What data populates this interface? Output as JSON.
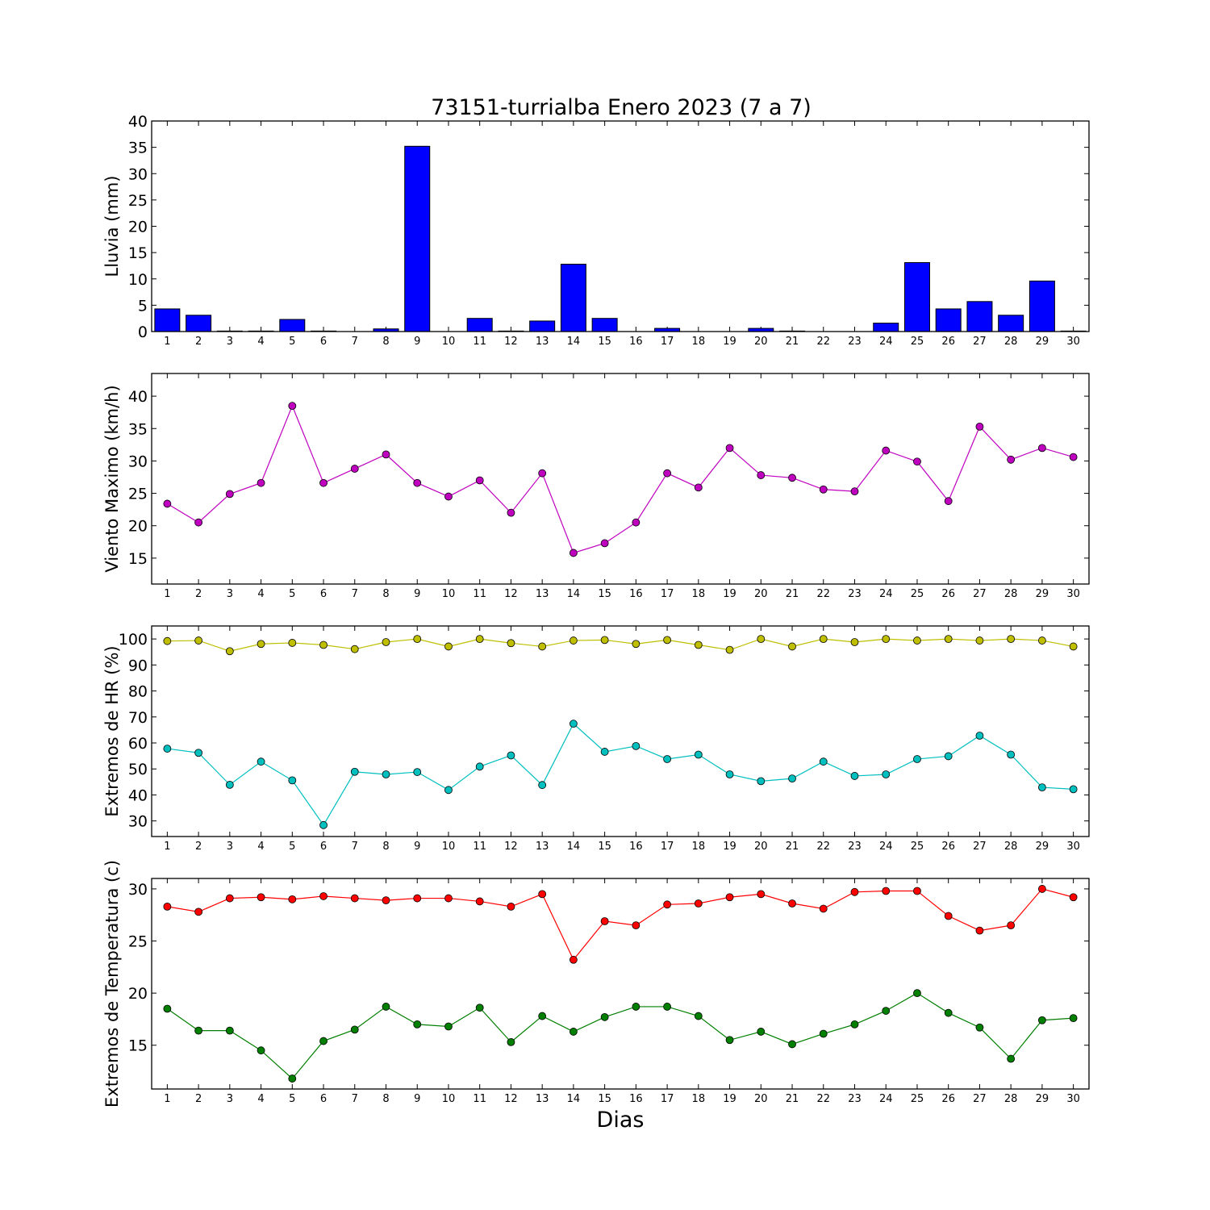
{
  "figure": {
    "title": "73151-turrialba Enero 2023  (7 a 7)",
    "xlabel": "Dias"
  },
  "chart_data": [
    {
      "type": "bar",
      "ylabel": "Lluvia (mm)",
      "ylim": [
        0,
        40
      ],
      "yticks": [
        0,
        5,
        10,
        15,
        20,
        25,
        30,
        35,
        40
      ],
      "color": "#0000ff",
      "categories": [
        1,
        2,
        3,
        4,
        5,
        6,
        7,
        8,
        9,
        10,
        11,
        12,
        13,
        14,
        15,
        16,
        17,
        18,
        19,
        20,
        21,
        22,
        23,
        24,
        25,
        26,
        27,
        28,
        29,
        30
      ],
      "values": [
        4.3,
        3.1,
        0.1,
        0.1,
        2.3,
        0.1,
        0,
        0.5,
        35.2,
        0,
        2.5,
        0.1,
        2.0,
        12.8,
        2.5,
        0,
        0.6,
        0,
        0,
        0.6,
        0.1,
        0,
        0,
        1.6,
        13.1,
        4.3,
        5.7,
        3.1,
        9.6,
        0.1
      ]
    },
    {
      "type": "line",
      "ylabel": "Viento Maximo (km/h)",
      "ylim": [
        11,
        43.5
      ],
      "yticks": [
        15,
        20,
        25,
        30,
        35,
        40
      ],
      "x": [
        1,
        2,
        3,
        4,
        5,
        6,
        7,
        8,
        9,
        10,
        11,
        12,
        13,
        14,
        15,
        16,
        17,
        18,
        19,
        20,
        21,
        22,
        23,
        24,
        25,
        26,
        27,
        28,
        29,
        30
      ],
      "series": [
        {
          "color": "#bf00bf",
          "values": [
            23.4,
            20.5,
            24.9,
            26.6,
            38.5,
            26.6,
            28.8,
            31.0,
            26.6,
            24.5,
            27.0,
            22.0,
            28.1,
            15.8,
            17.3,
            20.5,
            28.1,
            25.9,
            32.0,
            27.8,
            27.4,
            25.6,
            25.3,
            31.6,
            29.9,
            23.8,
            35.3,
            30.2,
            32.0,
            30.6
          ]
        }
      ]
    },
    {
      "type": "line",
      "ylabel": "Extremos de HR (%)",
      "ylim": [
        24,
        105
      ],
      "yticks": [
        30,
        40,
        50,
        60,
        70,
        80,
        90,
        100
      ],
      "x": [
        1,
        2,
        3,
        4,
        5,
        6,
        7,
        8,
        9,
        10,
        11,
        12,
        13,
        14,
        15,
        16,
        17,
        18,
        19,
        20,
        21,
        22,
        23,
        24,
        25,
        26,
        27,
        28,
        29,
        30
      ],
      "series": [
        {
          "color": "#bfbf00",
          "values": [
            99.2,
            99.4,
            95.3,
            98.1,
            98.5,
            97.7,
            96.1,
            98.8,
            100.0,
            97.1,
            100.0,
            98.4,
            97.1,
            99.4,
            99.6,
            98.1,
            99.6,
            97.7,
            95.8,
            100.0,
            97.1,
            100.0,
            98.8,
            100.0,
            99.4,
            100.0,
            99.4,
            100.0,
            99.4,
            97.1
          ]
        },
        {
          "color": "#00bfbf",
          "values": [
            57.8,
            56.2,
            43.9,
            52.8,
            45.6,
            28.4,
            48.9,
            47.9,
            48.8,
            41.9,
            50.9,
            55.2,
            43.8,
            67.4,
            56.6,
            58.8,
            53.8,
            55.5,
            47.9,
            45.3,
            46.3,
            52.8,
            47.3,
            47.9,
            53.8,
            54.9,
            62.8,
            55.5,
            42.9,
            42.2
          ]
        }
      ]
    },
    {
      "type": "line",
      "ylabel": "Extremos de Temperatura (c)",
      "ylim": [
        10.8,
        31
      ],
      "yticks": [
        15,
        20,
        25,
        30
      ],
      "x": [
        1,
        2,
        3,
        4,
        5,
        6,
        7,
        8,
        9,
        10,
        11,
        12,
        13,
        14,
        15,
        16,
        17,
        18,
        19,
        20,
        21,
        22,
        23,
        24,
        25,
        26,
        27,
        28,
        29,
        30
      ],
      "series": [
        {
          "color": "#ff0000",
          "values": [
            28.3,
            27.8,
            29.1,
            29.2,
            29.0,
            29.3,
            29.1,
            28.9,
            29.1,
            29.1,
            28.8,
            28.3,
            29.5,
            23.2,
            26.9,
            26.5,
            28.5,
            28.6,
            29.2,
            29.5,
            28.6,
            28.1,
            29.7,
            29.8,
            29.8,
            27.4,
            26.0,
            26.5,
            30.0,
            29.2
          ]
        },
        {
          "color": "#007f00",
          "values": [
            18.5,
            16.4,
            16.4,
            14.5,
            11.8,
            15.4,
            16.5,
            18.7,
            17.0,
            16.8,
            18.6,
            15.3,
            17.8,
            16.3,
            17.7,
            18.7,
            18.7,
            17.8,
            15.5,
            16.3,
            15.1,
            16.1,
            17.0,
            18.3,
            20.0,
            18.1,
            16.7,
            13.7,
            17.4,
            17.6
          ]
        }
      ]
    }
  ]
}
